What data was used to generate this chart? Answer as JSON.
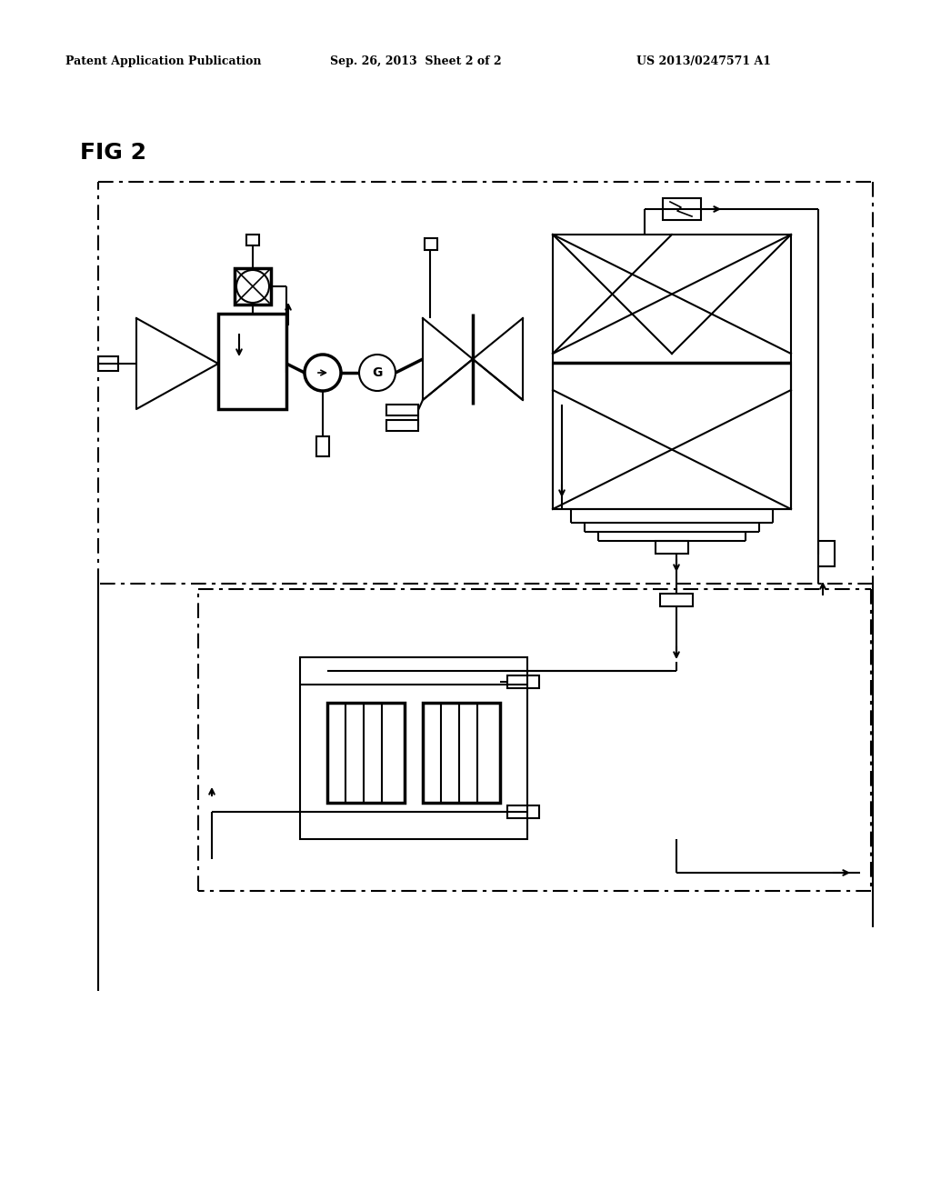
{
  "title_left": "Patent Application Publication",
  "title_mid": "Sep. 26, 2013  Sheet 2 of 2",
  "title_right": "US 2013/0247571 A1",
  "fig_label": "FIG 2",
  "bg_color": "#ffffff"
}
